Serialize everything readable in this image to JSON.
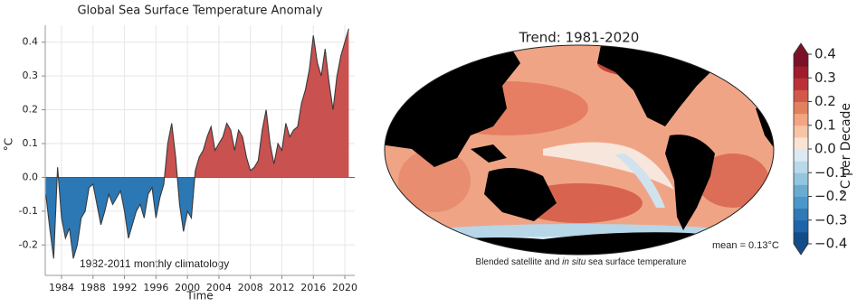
{
  "chart_data": [
    {
      "type": "area",
      "title": "Global Sea Surface Temperature Anomaly",
      "xlabel": "Time",
      "ylabel": "°C",
      "annotation": "1982-2011 monthly climatology",
      "x": [
        1982.0,
        1982.5,
        1983.0,
        1983.5,
        1984.0,
        1984.5,
        1985.0,
        1985.5,
        1986.0,
        1986.5,
        1987.0,
        1987.5,
        1988.0,
        1988.5,
        1989.0,
        1989.5,
        1990.0,
        1990.5,
        1991.0,
        1991.5,
        1992.0,
        1992.5,
        1993.0,
        1993.5,
        1994.0,
        1994.5,
        1995.0,
        1995.5,
        1996.0,
        1996.5,
        1997.0,
        1997.5,
        1998.0,
        1998.5,
        1999.0,
        1999.5,
        2000.0,
        2000.5,
        2001.0,
        2001.5,
        2002.0,
        2002.5,
        2003.0,
        2003.5,
        2004.0,
        2004.5,
        2005.0,
        2005.5,
        2006.0,
        2006.5,
        2007.0,
        2007.5,
        2008.0,
        2008.5,
        2009.0,
        2009.5,
        2010.0,
        2010.5,
        2011.0,
        2011.5,
        2012.0,
        2012.5,
        2013.0,
        2013.5,
        2014.0,
        2014.5,
        2015.0,
        2015.5,
        2016.0,
        2016.5,
        2017.0,
        2017.5,
        2018.0,
        2018.5,
        2019.0,
        2019.5,
        2020.0,
        2020.5
      ],
      "values": [
        -0.05,
        -0.15,
        -0.24,
        0.03,
        -0.12,
        -0.18,
        -0.15,
        -0.24,
        -0.2,
        -0.12,
        -0.1,
        -0.03,
        -0.02,
        -0.08,
        -0.14,
        -0.1,
        -0.05,
        -0.08,
        -0.06,
        -0.04,
        -0.1,
        -0.18,
        -0.14,
        -0.1,
        -0.08,
        -0.12,
        -0.05,
        -0.03,
        -0.12,
        -0.06,
        -0.02,
        0.1,
        0.16,
        0.06,
        -0.08,
        -0.16,
        -0.1,
        -0.12,
        0.02,
        0.06,
        0.08,
        0.12,
        0.15,
        0.08,
        0.1,
        0.12,
        0.16,
        0.14,
        0.08,
        0.14,
        0.12,
        0.06,
        0.02,
        0.03,
        0.05,
        0.14,
        0.2,
        0.1,
        0.04,
        0.1,
        0.08,
        0.16,
        0.12,
        0.14,
        0.15,
        0.22,
        0.26,
        0.32,
        0.42,
        0.34,
        0.3,
        0.38,
        0.28,
        0.2,
        0.3,
        0.36,
        0.4,
        0.44
      ],
      "color_above": "#c9514f",
      "color_below": "#2b78b5",
      "line_color": "#3a3a3a",
      "xlim": [
        1981.93,
        2021.26
      ],
      "ylim": [
        -0.29,
        0.45
      ],
      "xticks": [
        1984,
        1988,
        1992,
        1996,
        2000,
        2004,
        2008,
        2012,
        2016,
        2020
      ],
      "yticks": [
        -0.2,
        -0.1,
        {
          "value": 0,
          "label": "0.0"
        },
        0.1,
        0.2,
        0.3,
        0.4
      ],
      "grid": true
    },
    {
      "type": "map",
      "title": "Trend: 1981-2020",
      "annotation": "mean = 0.13°C",
      "caption": [
        "Blended satellite and ",
        "in situ",
        " sea surface temperature"
      ],
      "colorbar": {
        "label": "°C per Decade",
        "lim": [
          -0.4,
          0.4
        ],
        "ticks": [
          0.4,
          0.3,
          0.2,
          0.1,
          {
            "value": 0,
            "label": "0.0"
          },
          {
            "value": -0.1,
            "label": "−0.1"
          },
          {
            "value": -0.2,
            "label": "−0.2"
          },
          {
            "value": -0.3,
            "label": "−0.3"
          },
          {
            "value": -0.4,
            "label": "−0.4"
          }
        ],
        "colors": [
          "#134c87",
          "#1f63a8",
          "#2f79b5",
          "#4a98c9",
          "#6aacd0",
          "#93c5de",
          "#b9d8e9",
          "#dbeaf2",
          "#fbe3d4",
          "#f8c4a8",
          "#f3a481",
          "#e2805f",
          "#d25849",
          "#bc3137",
          "#9f1c2b",
          "#7b1129"
        ],
        "extend": "both"
      }
    }
  ]
}
